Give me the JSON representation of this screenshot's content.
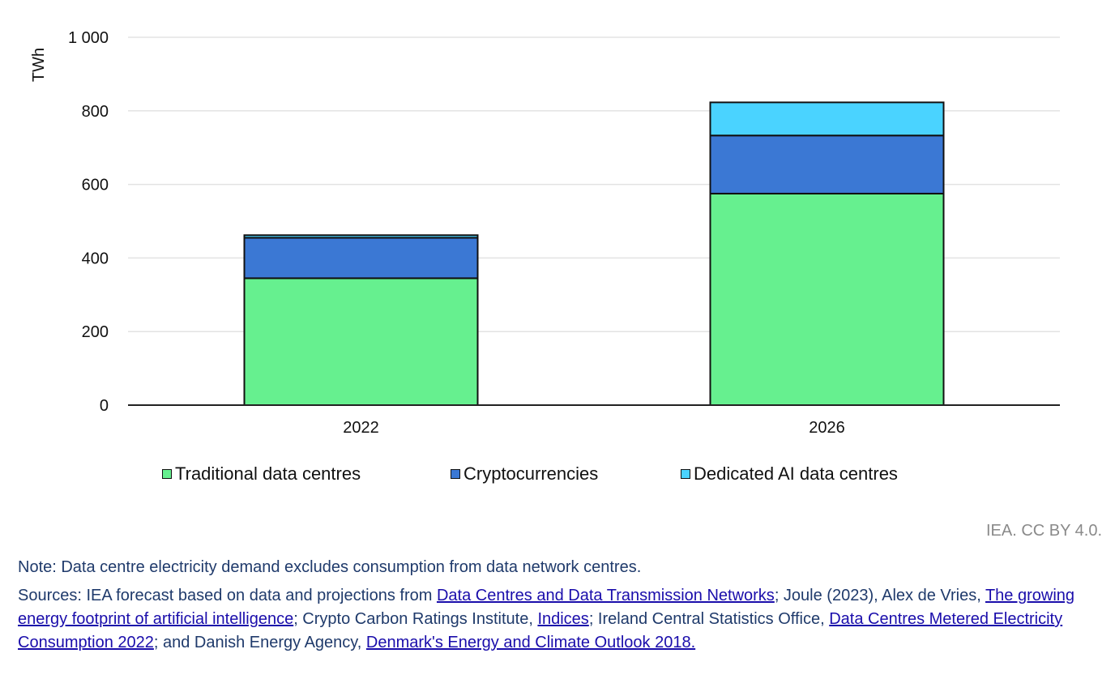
{
  "chart_data": {
    "type": "bar",
    "stacked": true,
    "categories": [
      "2022",
      "2026"
    ],
    "series": [
      {
        "name": "Traditional data centres",
        "color": "#66f08f",
        "values": [
          345,
          575
        ]
      },
      {
        "name": "Cryptocurrencies",
        "color": "#3b78d4",
        "values": [
          110,
          158
        ]
      },
      {
        "name": "Dedicated AI data centres",
        "color": "#4ad3ff",
        "values": [
          7,
          90
        ]
      }
    ],
    "ylabel": "TWh",
    "ylim": [
      0,
      1000
    ],
    "yticks": [
      0,
      200,
      400,
      600,
      800,
      1000
    ],
    "ytick_labels": [
      "0",
      "200",
      "400",
      "600",
      "800",
      "1 000"
    ],
    "grid": true,
    "legend_position": "bottom"
  },
  "credit": "IEA. CC BY 4.0.",
  "note": "Note: Data centre electricity demand excludes consumption from data network centres.",
  "sources": {
    "prefix": "Sources: IEA forecast based on data and projections from ",
    "link1": "Data Centres and Data Transmission Networks",
    "text2": "; Joule (2023), Alex de Vries, ",
    "link2": "The growing energy footprint of artificial intelligence",
    "text3": "; Crypto Carbon Ratings Institute, ",
    "link3": "Indices",
    "text4": "; Ireland Central Statistics Office, ",
    "link4": "Data Centres Metered Electricity Consumption 2022",
    "text5": "; and Danish Energy Agency, ",
    "link5": "Denmark's Energy and Climate Outlook 2018."
  }
}
